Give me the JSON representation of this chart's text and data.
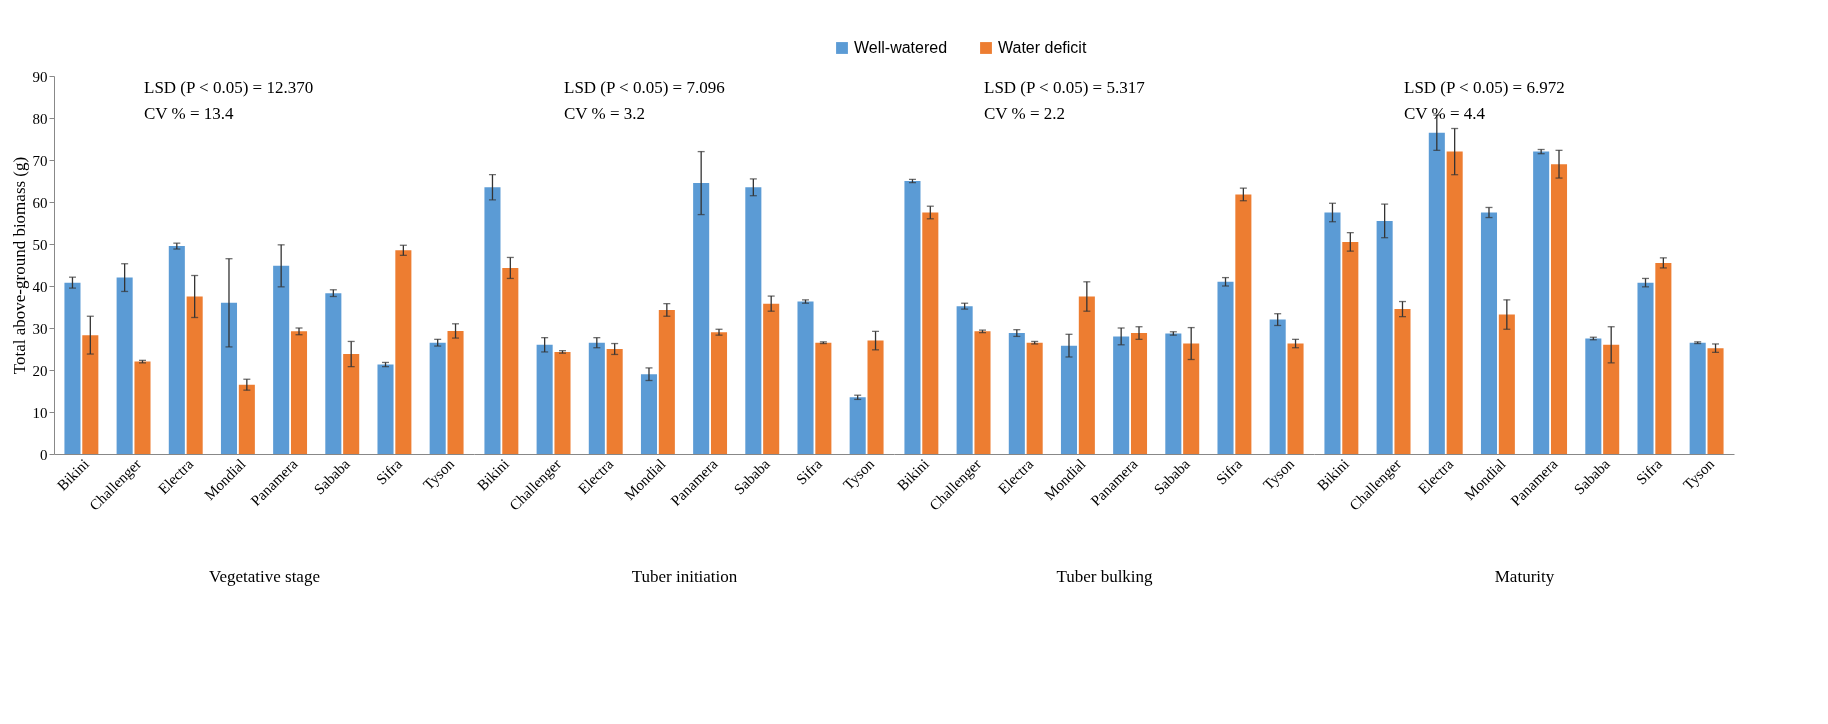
{
  "chart_data": [
    {
      "type": "bar",
      "xlabel": "Vegetative stage",
      "ylabel": "Total above-ground biomass (g)",
      "ylim": [
        0,
        90
      ],
      "yticks": [
        0,
        10,
        20,
        30,
        40,
        50,
        60,
        70,
        80,
        90
      ],
      "legend": "top",
      "grid": false,
      "annotations": [
        "LSD (P < 0.05) = 12.370",
        "CV % = 13.4"
      ],
      "categories": [
        "Bikini",
        "Challenger",
        "Electra",
        "Mondial",
        "Panamera",
        "Sababa",
        "Sifra",
        "Tyson"
      ],
      "series": [
        {
          "name": "Well-watered",
          "color": "#5b9bd5",
          "values": [
            40.8,
            42,
            49.5,
            36,
            44.8,
            38.3,
            21.3,
            26.5
          ],
          "errors": [
            1.3,
            3.3,
            0.7,
            10.5,
            5,
            0.8,
            0.5,
            0.8
          ]
        },
        {
          "name": "Water deficit",
          "color": "#ed7d31",
          "values": [
            28.3,
            22,
            37.5,
            16.5,
            29.2,
            23.8,
            48.5,
            29.3
          ],
          "errors": [
            4.5,
            0.3,
            5,
            1.3,
            0.8,
            3,
            1.2,
            1.7
          ]
        }
      ]
    },
    {
      "type": "bar",
      "xlabel": "Tuber initiation",
      "ylim": [
        0,
        90
      ],
      "yticks": [
        0,
        10,
        20,
        30,
        40,
        50,
        60,
        70,
        80,
        90
      ],
      "tick_labels": "x",
      "grid": false,
      "annotations": [
        "LSD (P < 0.05) = 7.096",
        "CV % = 3.2"
      ],
      "categories": [
        "Bikini",
        "Challenger",
        "Electra",
        "Mondial",
        "Panamera",
        "Sababa",
        "Sifra",
        "Tyson"
      ],
      "series": [
        {
          "name": "Well-watered",
          "color": "#5b9bd5",
          "values": [
            63.5,
            26,
            26.5,
            19,
            64.5,
            63.5,
            36.3,
            13.5
          ],
          "errors": [
            3,
            1.7,
            1.2,
            1.5,
            7.5,
            2,
            0.4,
            0.5
          ]
        },
        {
          "name": "Water deficit",
          "color": "#ed7d31",
          "values": [
            44.3,
            24.3,
            25,
            34.3,
            29,
            35.8,
            26.5,
            27
          ],
          "errors": [
            2.5,
            0.3,
            1.3,
            1.5,
            0.7,
            1.8,
            0.2,
            2.2
          ]
        }
      ]
    },
    {
      "type": "bar",
      "xlabel": "Tuber bulking",
      "ylim": [
        0,
        90
      ],
      "yticks": [
        0,
        10,
        20,
        30,
        40,
        50,
        60,
        70,
        80,
        90
      ],
      "tick_labels": "x",
      "grid": false,
      "annotations": [
        "LSD (P < 0.05) = 5.317",
        "CV % = 2.2"
      ],
      "categories": [
        "Bikini",
        "Challenger",
        "Electra",
        "Mondial",
        "Panamera",
        "Sababa",
        "Sifra",
        "Tyson"
      ],
      "series": [
        {
          "name": "Well-watered",
          "color": "#5b9bd5",
          "values": [
            65,
            35.2,
            28.8,
            25.8,
            28,
            28.7,
            41,
            32
          ],
          "errors": [
            0.4,
            0.7,
            0.8,
            2.7,
            2,
            0.4,
            1,
            1.4
          ]
        },
        {
          "name": "Water deficit",
          "color": "#ed7d31",
          "values": [
            57.5,
            29.2,
            26.5,
            37.5,
            28.8,
            26.3,
            61.8,
            26.3
          ],
          "errors": [
            1.5,
            0.3,
            0.3,
            3.5,
            1.5,
            3.8,
            1.5,
            1
          ]
        }
      ]
    },
    {
      "type": "bar",
      "xlabel": "Maturity",
      "ylim": [
        0,
        90
      ],
      "yticks": [
        0,
        10,
        20,
        30,
        40,
        50,
        60,
        70,
        80,
        90
      ],
      "tick_labels": "x",
      "grid": false,
      "annotations": [
        "LSD (P < 0.05) = 6.972",
        "CV % = 4.4"
      ],
      "categories": [
        "Bikini",
        "Challenger",
        "Electra",
        "Mondial",
        "Panamera",
        "Sababa",
        "Sifra",
        "Tyson"
      ],
      "series": [
        {
          "name": "Well-watered",
          "color": "#5b9bd5",
          "values": [
            57.5,
            55.5,
            76.5,
            57.5,
            72,
            27.5,
            40.8,
            26.5
          ],
          "errors": [
            2.2,
            4,
            4.2,
            1.2,
            0.5,
            0.3,
            1,
            0.2
          ]
        },
        {
          "name": "Water deficit",
          "color": "#ed7d31",
          "values": [
            50.5,
            34.5,
            72,
            33.2,
            69,
            26,
            45.5,
            25.2
          ],
          "errors": [
            2.2,
            1.8,
            5.5,
            3.5,
            3.3,
            4.3,
            1.2,
            1
          ]
        }
      ]
    }
  ]
}
